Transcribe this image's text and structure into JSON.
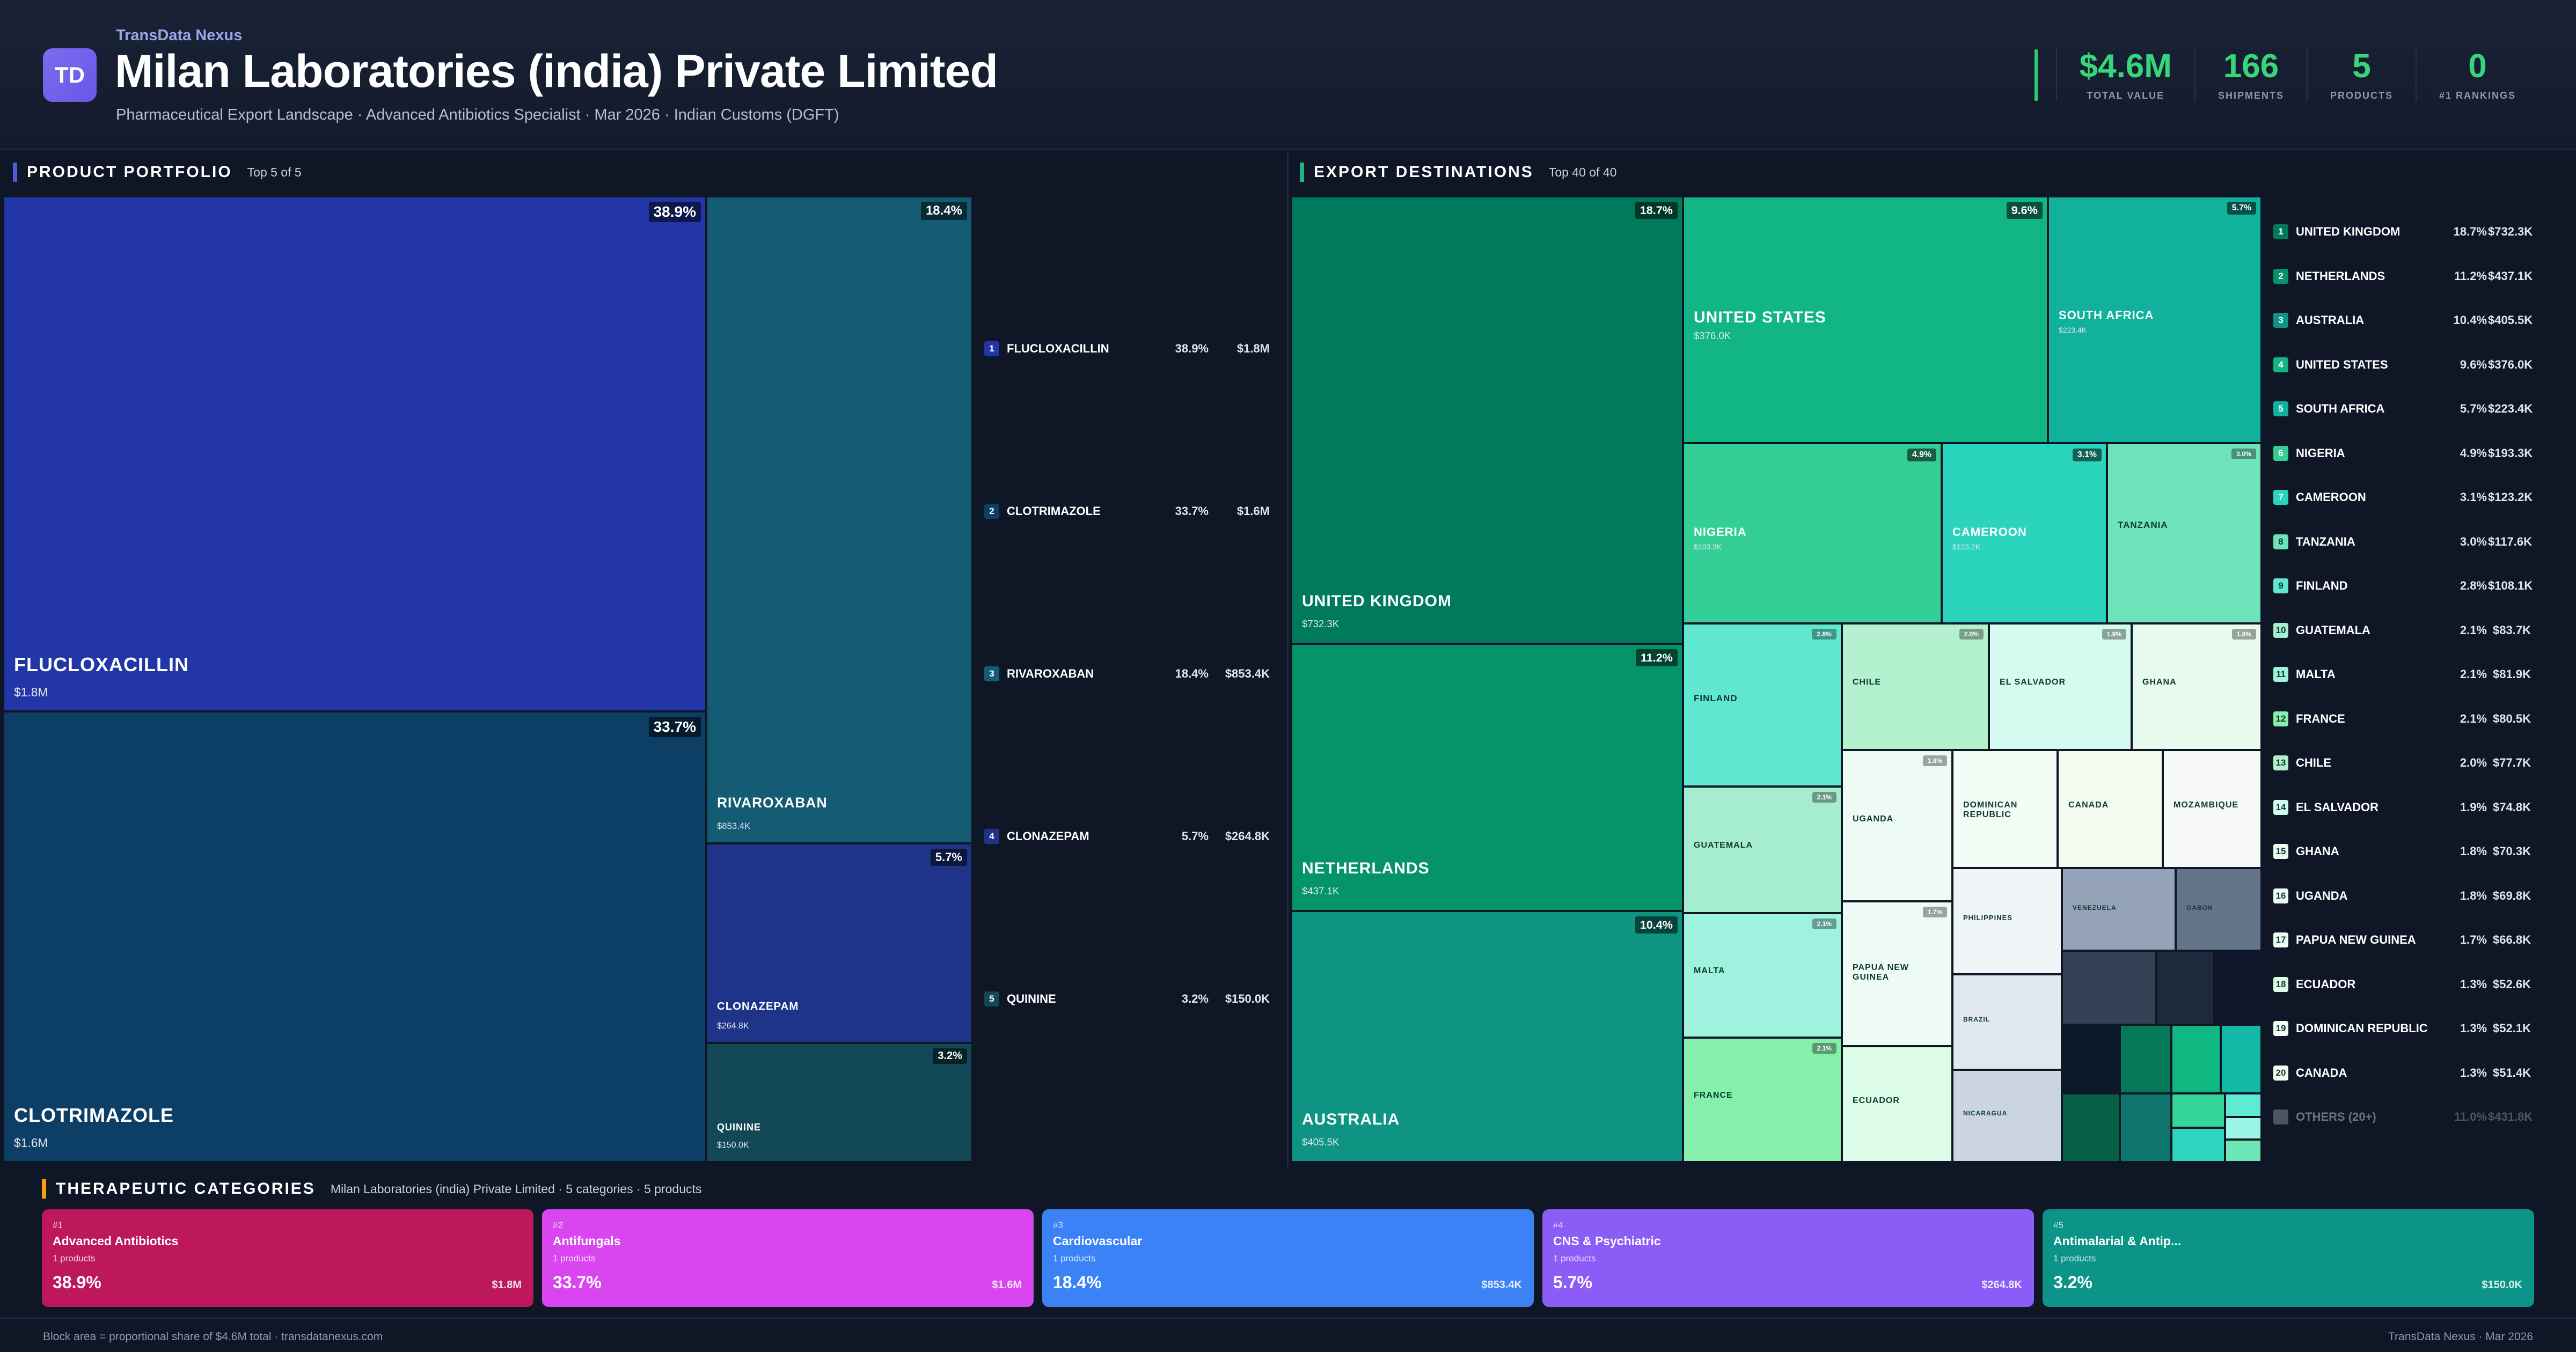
{
  "brand": "TransData Nexus",
  "logo": "TD",
  "title": "Milan Laboratories (india) Private Limited",
  "subtitle": "Pharmaceutical Export Landscape · Advanced Antibiotics Specialist · Mar 2026 · Indian Customs (DGFT)",
  "kpis": [
    {
      "value": "$4.6M",
      "label": "TOTAL VALUE"
    },
    {
      "value": "166",
      "label": "SHIPMENTS"
    },
    {
      "value": "5",
      "label": "PRODUCTS"
    },
    {
      "value": "0",
      "label": "#1 RANKINGS"
    }
  ],
  "portfolio": {
    "title": "PRODUCT PORTFOLIO",
    "subtitle": "Top 5 of 5",
    "accent": "#4f5bd5",
    "items": [
      {
        "rank": "1",
        "name": "FLUCLOXACILLIN",
        "pct": "38.9%",
        "value": "$1.8M",
        "color": "#2236a8"
      },
      {
        "rank": "2",
        "name": "CLOTRIMAZOLE",
        "pct": "33.7%",
        "value": "$1.6M",
        "color": "#0d3f66"
      },
      {
        "rank": "3",
        "name": "RIVAROXABAN",
        "pct": "18.4%",
        "value": "$853.4K",
        "color": "#145c74"
      },
      {
        "rank": "4",
        "name": "CLONAZEPAM",
        "pct": "5.7%",
        "value": "$264.8K",
        "color": "#1d3488"
      },
      {
        "rank": "5",
        "name": "QUININE",
        "pct": "3.2%",
        "value": "$150.0K",
        "color": "#134857"
      }
    ]
  },
  "destinations": {
    "title": "EXPORT DESTINATIONS",
    "subtitle": "Top 40 of 40",
    "accent": "#1fb57f",
    "tiles": [
      {
        "name": "UNITED KINGDOM",
        "pct": "18.7%",
        "value": "$732.3K",
        "color": "#007a5c"
      },
      {
        "name": "NETHERLANDS",
        "pct": "11.2%",
        "value": "$437.1K",
        "color": "#05946a"
      },
      {
        "name": "AUSTRALIA",
        "pct": "10.4%",
        "value": "$405.5K",
        "color": "#0f9484"
      },
      {
        "name": "UNITED STATES",
        "pct": "9.6%",
        "value": "$376.0K",
        "color": "#12b584"
      },
      {
        "name": "SOUTH AFRICA",
        "pct": "5.7%",
        "value": "$223.4K",
        "color": "#11b19e"
      },
      {
        "name": "NIGERIA",
        "pct": "4.9%",
        "value": "$193.3K",
        "color": "#33cf96"
      },
      {
        "name": "CAMEROON",
        "pct": "3.1%",
        "value": "$123.2K",
        "color": "#2bd4bd"
      },
      {
        "name": "TANZANIA",
        "pct": "3.0%",
        "value": "",
        "color": "#6ee2b8"
      },
      {
        "name": "FINLAND",
        "pct": "2.8%",
        "value": "",
        "color": "#5fe7d0"
      },
      {
        "name": "CHILE",
        "pct": "2.0%",
        "value": "",
        "color": "#b4f2cf"
      },
      {
        "name": "EL SALVADOR",
        "pct": "1.9%",
        "value": "",
        "color": "#d3fbef"
      },
      {
        "name": "GHANA",
        "pct": "1.8%",
        "value": "",
        "color": "#e7fbef"
      },
      {
        "name": "GUATEMALA",
        "pct": "2.1%",
        "value": "",
        "color": "#a6ecd0"
      },
      {
        "name": "UGANDA",
        "pct": "1.8%",
        "value": "",
        "color": "#edfbf4"
      },
      {
        "name": "DOMINICAN REPUBLIC",
        "pct": "",
        "value": "",
        "color": "#f3fcf5"
      },
      {
        "name": "CANADA",
        "pct": "",
        "value": "",
        "color": "#f6fbf2"
      },
      {
        "name": "MOZAMBIQUE",
        "pct": "",
        "value": "",
        "color": "#f7faf8"
      },
      {
        "name": "MALTA",
        "pct": "2.1%",
        "value": "",
        "color": "#9ef2de"
      },
      {
        "name": "PAPUA NEW GUINEA",
        "pct": "1.7%",
        "value": "",
        "color": "#eefbf5"
      },
      {
        "name": "PHILIPPINES",
        "pct": "",
        "value": "",
        "color": "#eff4f7"
      },
      {
        "name": "VENEZUELA",
        "pct": "",
        "value": "",
        "color": "#94a3b8"
      },
      {
        "name": "GABON",
        "pct": "",
        "value": "",
        "color": "#64748b"
      },
      {
        "name": "BRAZIL",
        "pct": "",
        "value": "",
        "color": "#e2e8f0"
      },
      {
        "name": "FRANCE",
        "pct": "2.1%",
        "value": "",
        "color": "#86efac"
      },
      {
        "name": "ECUADOR",
        "pct": "",
        "value": "",
        "color": "#dcfce7"
      },
      {
        "name": "NICARAGUA",
        "pct": "",
        "value": "",
        "color": "#cbd5e1"
      }
    ],
    "list": [
      {
        "rank": "1",
        "name": "UNITED KINGDOM",
        "pct": "18.7%",
        "value": "$732.3K",
        "color": "#007a5c"
      },
      {
        "rank": "2",
        "name": "NETHERLANDS",
        "pct": "11.2%",
        "value": "$437.1K",
        "color": "#05946a"
      },
      {
        "rank": "3",
        "name": "AUSTRALIA",
        "pct": "10.4%",
        "value": "$405.5K",
        "color": "#0f9484"
      },
      {
        "rank": "4",
        "name": "UNITED STATES",
        "pct": "9.6%",
        "value": "$376.0K",
        "color": "#12b584"
      },
      {
        "rank": "5",
        "name": "SOUTH AFRICA",
        "pct": "5.7%",
        "value": "$223.4K",
        "color": "#11b19e"
      },
      {
        "rank": "6",
        "name": "NIGERIA",
        "pct": "4.9%",
        "value": "$193.3K",
        "color": "#33cf96"
      },
      {
        "rank": "7",
        "name": "CAMEROON",
        "pct": "3.1%",
        "value": "$123.2K",
        "color": "#2bd4bd"
      },
      {
        "rank": "8",
        "name": "TANZANIA",
        "pct": "3.0%",
        "value": "$117.6K",
        "color": "#6ee2b8"
      },
      {
        "rank": "9",
        "name": "FINLAND",
        "pct": "2.8%",
        "value": "$108.1K",
        "color": "#5fe7d0"
      },
      {
        "rank": "10",
        "name": "GUATEMALA",
        "pct": "2.1%",
        "value": "$83.7K",
        "color": "#a6ecd0"
      },
      {
        "rank": "11",
        "name": "MALTA",
        "pct": "2.1%",
        "value": "$81.9K",
        "color": "#9ef2de"
      },
      {
        "rank": "12",
        "name": "FRANCE",
        "pct": "2.1%",
        "value": "$80.5K",
        "color": "#86efac"
      },
      {
        "rank": "13",
        "name": "CHILE",
        "pct": "2.0%",
        "value": "$77.7K",
        "color": "#b4f2cf"
      },
      {
        "rank": "14",
        "name": "EL SALVADOR",
        "pct": "1.9%",
        "value": "$74.8K",
        "color": "#d3fbef"
      },
      {
        "rank": "15",
        "name": "GHANA",
        "pct": "1.8%",
        "value": "$70.3K",
        "color": "#e7fbef"
      },
      {
        "rank": "16",
        "name": "UGANDA",
        "pct": "1.8%",
        "value": "$69.8K",
        "color": "#edfbf4"
      },
      {
        "rank": "17",
        "name": "PAPUA NEW GUINEA",
        "pct": "1.7%",
        "value": "$66.8K",
        "color": "#eefbf5"
      },
      {
        "rank": "18",
        "name": "ECUADOR",
        "pct": "1.3%",
        "value": "$52.6K",
        "color": "#dcfce7"
      },
      {
        "rank": "19",
        "name": "DOMINICAN REPUBLIC",
        "pct": "1.3%",
        "value": "$52.1K",
        "color": "#f3fcf5"
      },
      {
        "rank": "20",
        "name": "CANADA",
        "pct": "1.3%",
        "value": "$51.4K",
        "color": "#f6fbf2"
      },
      {
        "rank": "",
        "name": "OTHERS (20+)",
        "pct": "11.0%",
        "value": "$431.8K",
        "color": "#4b5563"
      }
    ]
  },
  "categories": {
    "title": "THERAPEUTIC CATEGORIES",
    "subtitle": "Milan Laboratories (india) Private Limited · 5 categories · 5 products",
    "accent": "#f59e0b",
    "items": [
      {
        "rank": "#1",
        "name": "Advanced Antibiotics",
        "count": "1 products",
        "pct": "38.9%",
        "value": "$1.8M",
        "color": "#be185d"
      },
      {
        "rank": "#2",
        "name": "Antifungals",
        "count": "1 products",
        "pct": "33.7%",
        "value": "$1.6M",
        "color": "#d946ef"
      },
      {
        "rank": "#3",
        "name": "Cardiovascular",
        "count": "1 products",
        "pct": "18.4%",
        "value": "$853.4K",
        "color": "#3b82f6"
      },
      {
        "rank": "#4",
        "name": "CNS & Psychiatric",
        "count": "1 products",
        "pct": "5.7%",
        "value": "$264.8K",
        "color": "#8b5cf6"
      },
      {
        "rank": "#5",
        "name": "Antimalarial & Antip...",
        "count": "1 products",
        "pct": "3.2%",
        "value": "$150.0K",
        "color": "#0d9488"
      }
    ]
  },
  "footer": {
    "left": "Block area = proportional share of $4.6M total · transdatanexus.com",
    "right": "TransData Nexus · Mar 2026"
  }
}
